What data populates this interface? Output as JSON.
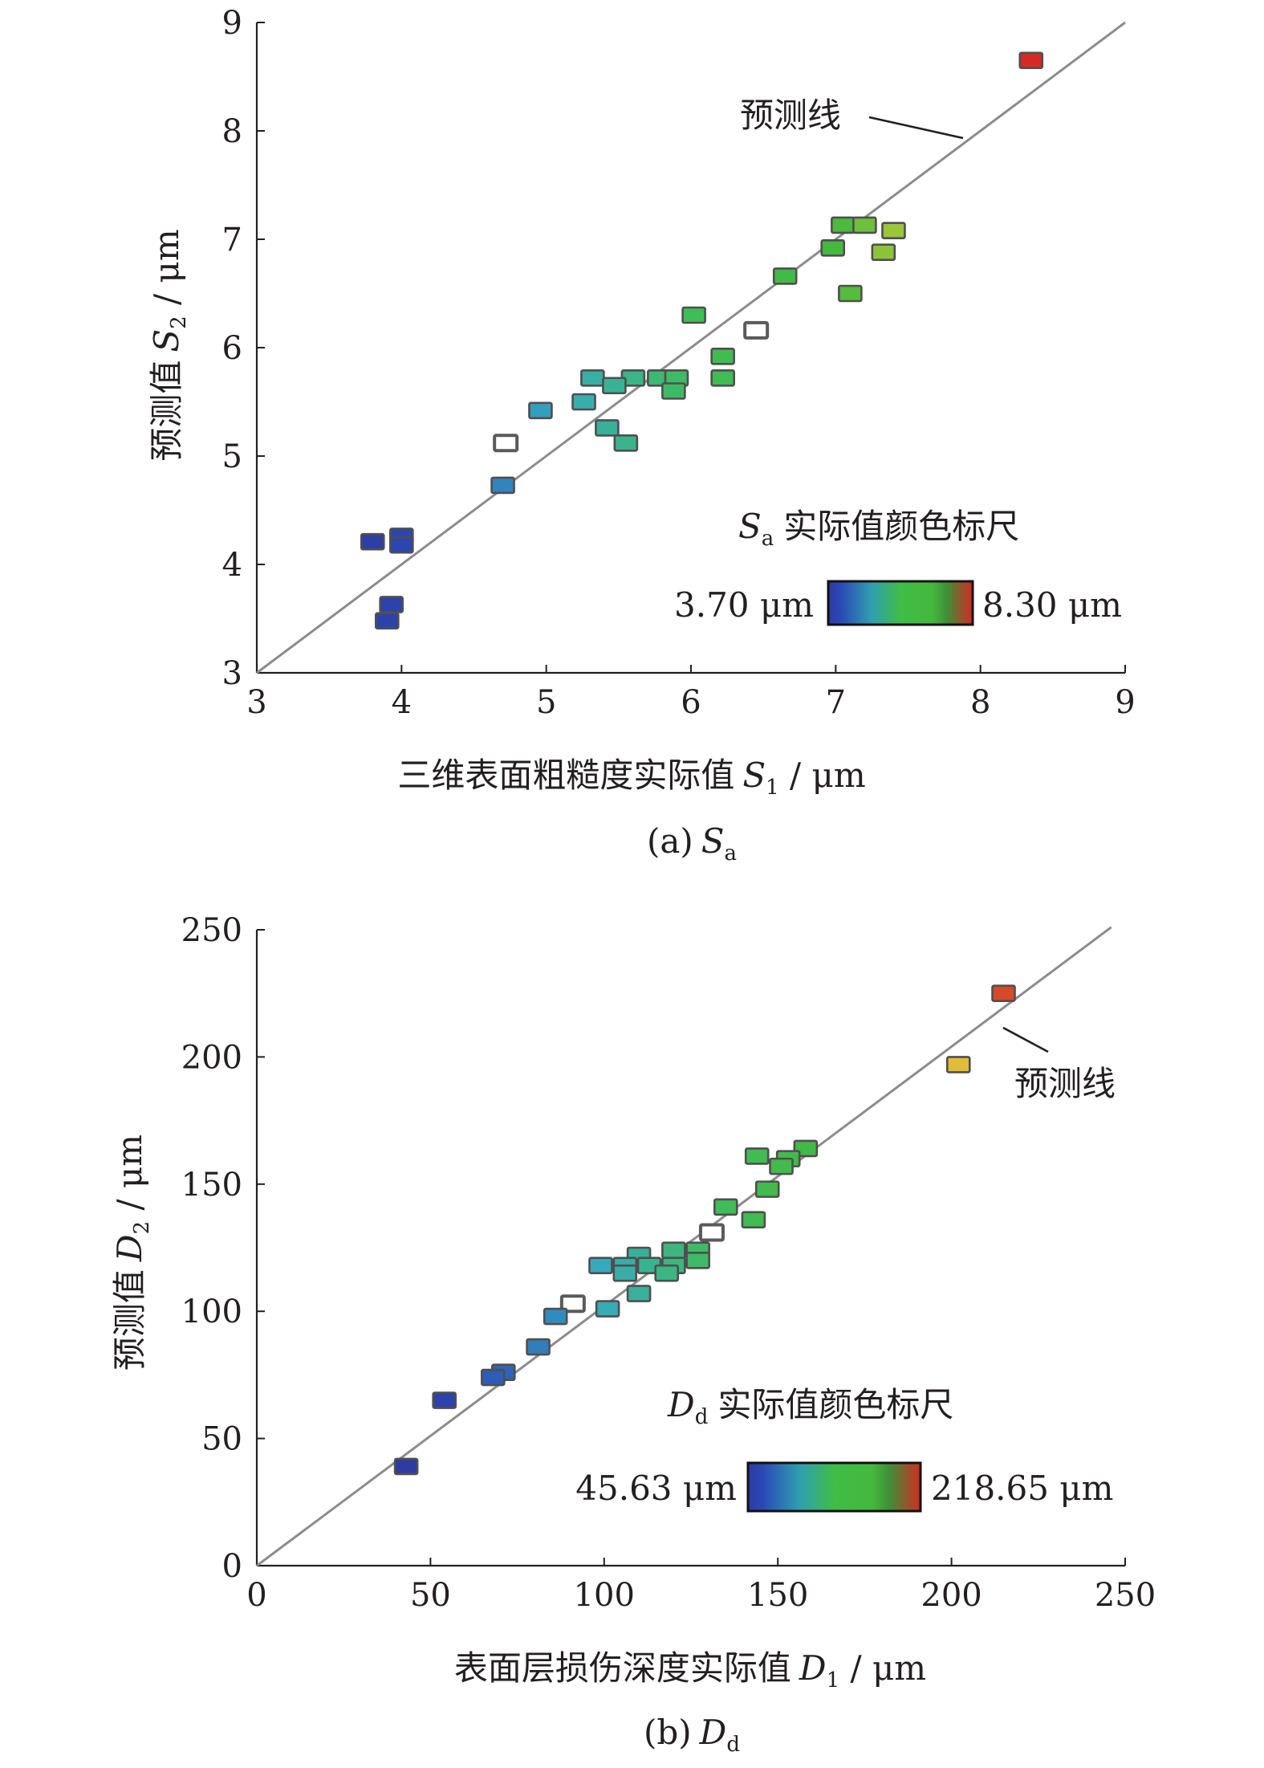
{
  "colors": {
    "axis": "#231f20",
    "prediction_line": "#8c8c8c",
    "scale_low": "#2e3ba0",
    "scale_mid": "#44b93c",
    "scale_high": "#d42a23"
  },
  "chart_data": [
    {
      "type": "scatter",
      "xlabel_main": "三维表面粗糙度实际值",
      "xlabel_sym": "S",
      "xlabel_sub": "1",
      "xlabel_unit": " / μm",
      "ylabel_main": "预测值",
      "ylabel_sym": "S",
      "ylabel_sub": "2",
      "ylabel_unit": " / μm",
      "caption_main": "(a)",
      "caption_sym": "S",
      "caption_sub": "a",
      "xlim": [
        3,
        9
      ],
      "ylim": [
        3,
        9
      ],
      "xticks": [
        3,
        4,
        5,
        6,
        7,
        8,
        9
      ],
      "yticks": [
        3,
        4,
        5,
        6,
        7,
        8,
        9
      ],
      "line_annotation": "预测线",
      "prediction_line": [
        [
          3,
          3
        ],
        [
          9.0,
          9.0
        ]
      ],
      "color_scale": {
        "title_sym": "S",
        "title_sub": "a",
        "title_text": "实际值颜色标尺",
        "min_label": "3.70 μm",
        "max_label": "8.30 μm",
        "min": 3.7,
        "max": 8.3
      },
      "points": [
        {
          "x": 8.35,
          "y": 8.65
        },
        {
          "x": 7.05,
          "y": 7.13
        },
        {
          "x": 7.2,
          "y": 7.13
        },
        {
          "x": 7.4,
          "y": 7.08
        },
        {
          "x": 6.98,
          "y": 6.92
        },
        {
          "x": 7.33,
          "y": 6.88
        },
        {
          "x": 7.1,
          "y": 6.5
        },
        {
          "x": 6.65,
          "y": 6.66
        },
        {
          "x": 6.02,
          "y": 6.3
        },
        {
          "x": 6.45,
          "y": 6.16,
          "hollow": true
        },
        {
          "x": 6.22,
          "y": 5.92
        },
        {
          "x": 6.22,
          "y": 5.72
        },
        {
          "x": 5.32,
          "y": 5.72
        },
        {
          "x": 5.6,
          "y": 5.72
        },
        {
          "x": 5.78,
          "y": 5.72
        },
        {
          "x": 5.9,
          "y": 5.72
        },
        {
          "x": 5.47,
          "y": 5.65
        },
        {
          "x": 5.88,
          "y": 5.6
        },
        {
          "x": 5.26,
          "y": 5.5
        },
        {
          "x": 4.96,
          "y": 5.42
        },
        {
          "x": 5.42,
          "y": 5.26
        },
        {
          "x": 5.55,
          "y": 5.12
        },
        {
          "x": 4.72,
          "y": 5.12,
          "hollow": true
        },
        {
          "x": 4.7,
          "y": 4.73
        },
        {
          "x": 3.8,
          "y": 4.21
        },
        {
          "x": 4.0,
          "y": 4.26
        },
        {
          "x": 4.0,
          "y": 4.18
        },
        {
          "x": 3.93,
          "y": 3.63
        },
        {
          "x": 3.9,
          "y": 3.48
        }
      ]
    },
    {
      "type": "scatter",
      "xlabel_main": "表面层损伤深度实际值",
      "xlabel_sym": "D",
      "xlabel_sub": "1",
      "xlabel_unit": " / μm",
      "ylabel_main": "预测值",
      "ylabel_sym": "D",
      "ylabel_sub": "2",
      "ylabel_unit": " / μm",
      "caption_main": "(b)",
      "caption_sym": "D",
      "caption_sub": "d",
      "xlim": [
        0,
        250
      ],
      "ylim": [
        0,
        250
      ],
      "xticks": [
        0,
        50,
        100,
        150,
        200,
        250
      ],
      "yticks": [
        0,
        50,
        100,
        150,
        200,
        250
      ],
      "line_annotation": "预测线",
      "prediction_line": [
        [
          0,
          0
        ],
        [
          246,
          251
        ]
      ],
      "color_scale": {
        "title_sym": "D",
        "title_sub": "d",
        "title_text": "实际值颜色标尺",
        "min_label": "45.63 μm",
        "max_label": "218.65 μm",
        "min": 45.63,
        "max": 218.65
      },
      "points": [
        {
          "x": 215,
          "y": 225
        },
        {
          "x": 202,
          "y": 197
        },
        {
          "x": 158,
          "y": 164
        },
        {
          "x": 153,
          "y": 160
        },
        {
          "x": 144,
          "y": 161
        },
        {
          "x": 151,
          "y": 157
        },
        {
          "x": 147,
          "y": 148
        },
        {
          "x": 143,
          "y": 136
        },
        {
          "x": 135,
          "y": 141
        },
        {
          "x": 131,
          "y": 131,
          "hollow": true
        },
        {
          "x": 127,
          "y": 124
        },
        {
          "x": 127,
          "y": 120
        },
        {
          "x": 120,
          "y": 124
        },
        {
          "x": 110,
          "y": 122
        },
        {
          "x": 120,
          "y": 118
        },
        {
          "x": 113,
          "y": 118
        },
        {
          "x": 99,
          "y": 118
        },
        {
          "x": 106,
          "y": 118
        },
        {
          "x": 106,
          "y": 115
        },
        {
          "x": 118,
          "y": 115
        },
        {
          "x": 110,
          "y": 107
        },
        {
          "x": 101,
          "y": 101
        },
        {
          "x": 91,
          "y": 103,
          "hollow": true
        },
        {
          "x": 86,
          "y": 98
        },
        {
          "x": 81,
          "y": 86
        },
        {
          "x": 71,
          "y": 76
        },
        {
          "x": 68,
          "y": 74
        },
        {
          "x": 54,
          "y": 65
        },
        {
          "x": 43,
          "y": 39
        }
      ]
    }
  ]
}
